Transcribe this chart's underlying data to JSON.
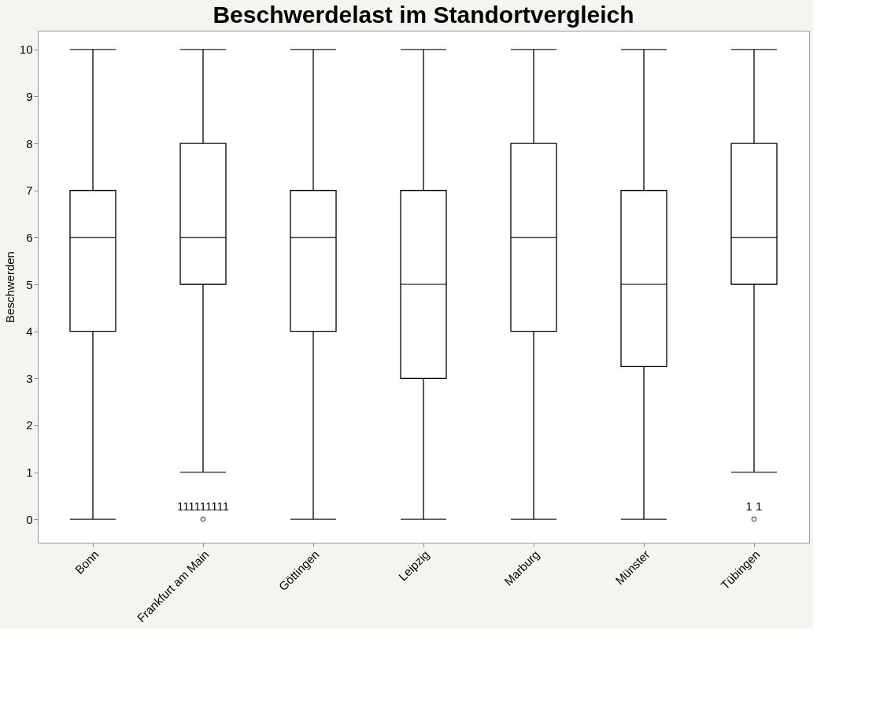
{
  "chart_data": {
    "type": "box",
    "title": "Beschwerdelast im Standortvergleich",
    "ylabel": "Beschwerden",
    "categories": [
      "Bonn",
      "Frankfurt am Main",
      "Göttingen",
      "Leipzig",
      "Marburg",
      "Münster",
      "Tübingen"
    ],
    "boxes": [
      {
        "low": 0,
        "q1": 4,
        "median": 6,
        "q3": 7,
        "high": 10
      },
      {
        "low": 1,
        "q1": 5,
        "median": 6,
        "q3": 8,
        "high": 10,
        "outliers": [
          0
        ]
      },
      {
        "low": 0,
        "q1": 4,
        "median": 6,
        "q3": 7,
        "high": 10
      },
      {
        "low": 0,
        "q1": 3,
        "median": 5,
        "q3": 7,
        "high": 10
      },
      {
        "low": 0,
        "q1": 4,
        "median": 6,
        "q3": 8,
        "high": 10
      },
      {
        "low": 0,
        "q1": 3.25,
        "median": 5,
        "q3": 7,
        "high": 10
      },
      {
        "low": 1,
        "q1": 5,
        "median": 6,
        "q3": 8,
        "high": 10,
        "outliers": [
          0
        ]
      }
    ],
    "annotations": [
      "111111111",
      "1 1"
    ],
    "ylim": [
      -0.5,
      10.4
    ],
    "yticks": [
      0,
      1,
      2,
      3,
      4,
      5,
      6,
      7,
      8,
      9,
      10
    ],
    "grid": false
  }
}
